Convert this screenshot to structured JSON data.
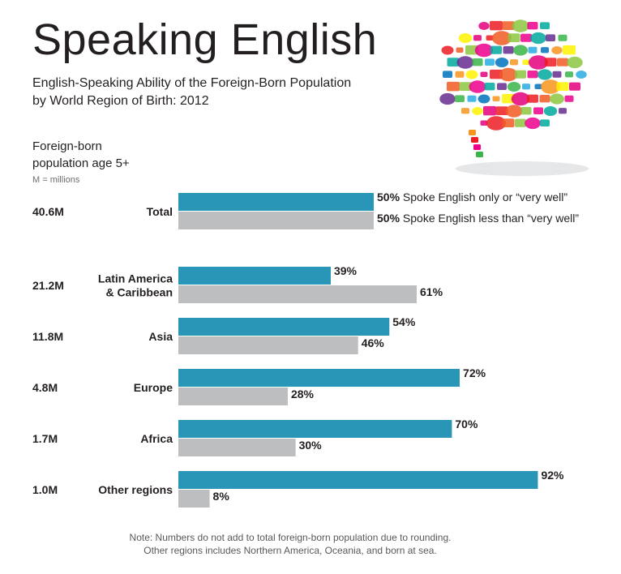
{
  "header": {
    "title": "Speaking English",
    "subtitle_line1": "English-Speaking Ability of the Foreign-Born Population",
    "subtitle_line2": "by World Region of Birth: 2012",
    "population_label_line1": "Foreign-born",
    "population_label_line2": "population age 5+",
    "units": "M = millions"
  },
  "note": {
    "line1": "Note:  Numbers do not add to total foreign-born population due to rounding.",
    "line2": "Other regions includes Northern America, Oceania, and born at sea."
  },
  "colors": {
    "well": "#2996b8",
    "less": "#bcbec0",
    "text": "#231f20"
  },
  "chart_data": {
    "type": "bar",
    "orientation": "horizontal",
    "categories": [
      {
        "label_lines": [
          "Total"
        ],
        "population": "40.6M"
      },
      {
        "label_lines": [
          "Latin America",
          "& Caribbean"
        ],
        "population": "21.2M"
      },
      {
        "label_lines": [
          "Asia"
        ],
        "population": "11.8M"
      },
      {
        "label_lines": [
          "Europe"
        ],
        "population": "4.8M"
      },
      {
        "label_lines": [
          "Africa"
        ],
        "population": "1.7M"
      },
      {
        "label_lines": [
          "Other regions"
        ],
        "population": "1.0M"
      }
    ],
    "series": [
      {
        "name": "Spoke English only or “very well”",
        "values": [
          50,
          39,
          54,
          72,
          70,
          92
        ]
      },
      {
        "name": "Spoke English less than “very well”",
        "values": [
          50,
          61,
          46,
          28,
          30,
          8
        ]
      }
    ],
    "value_suffix": "%",
    "xlim": [
      0,
      100
    ],
    "grid": false,
    "legend": "inline on Total row"
  }
}
